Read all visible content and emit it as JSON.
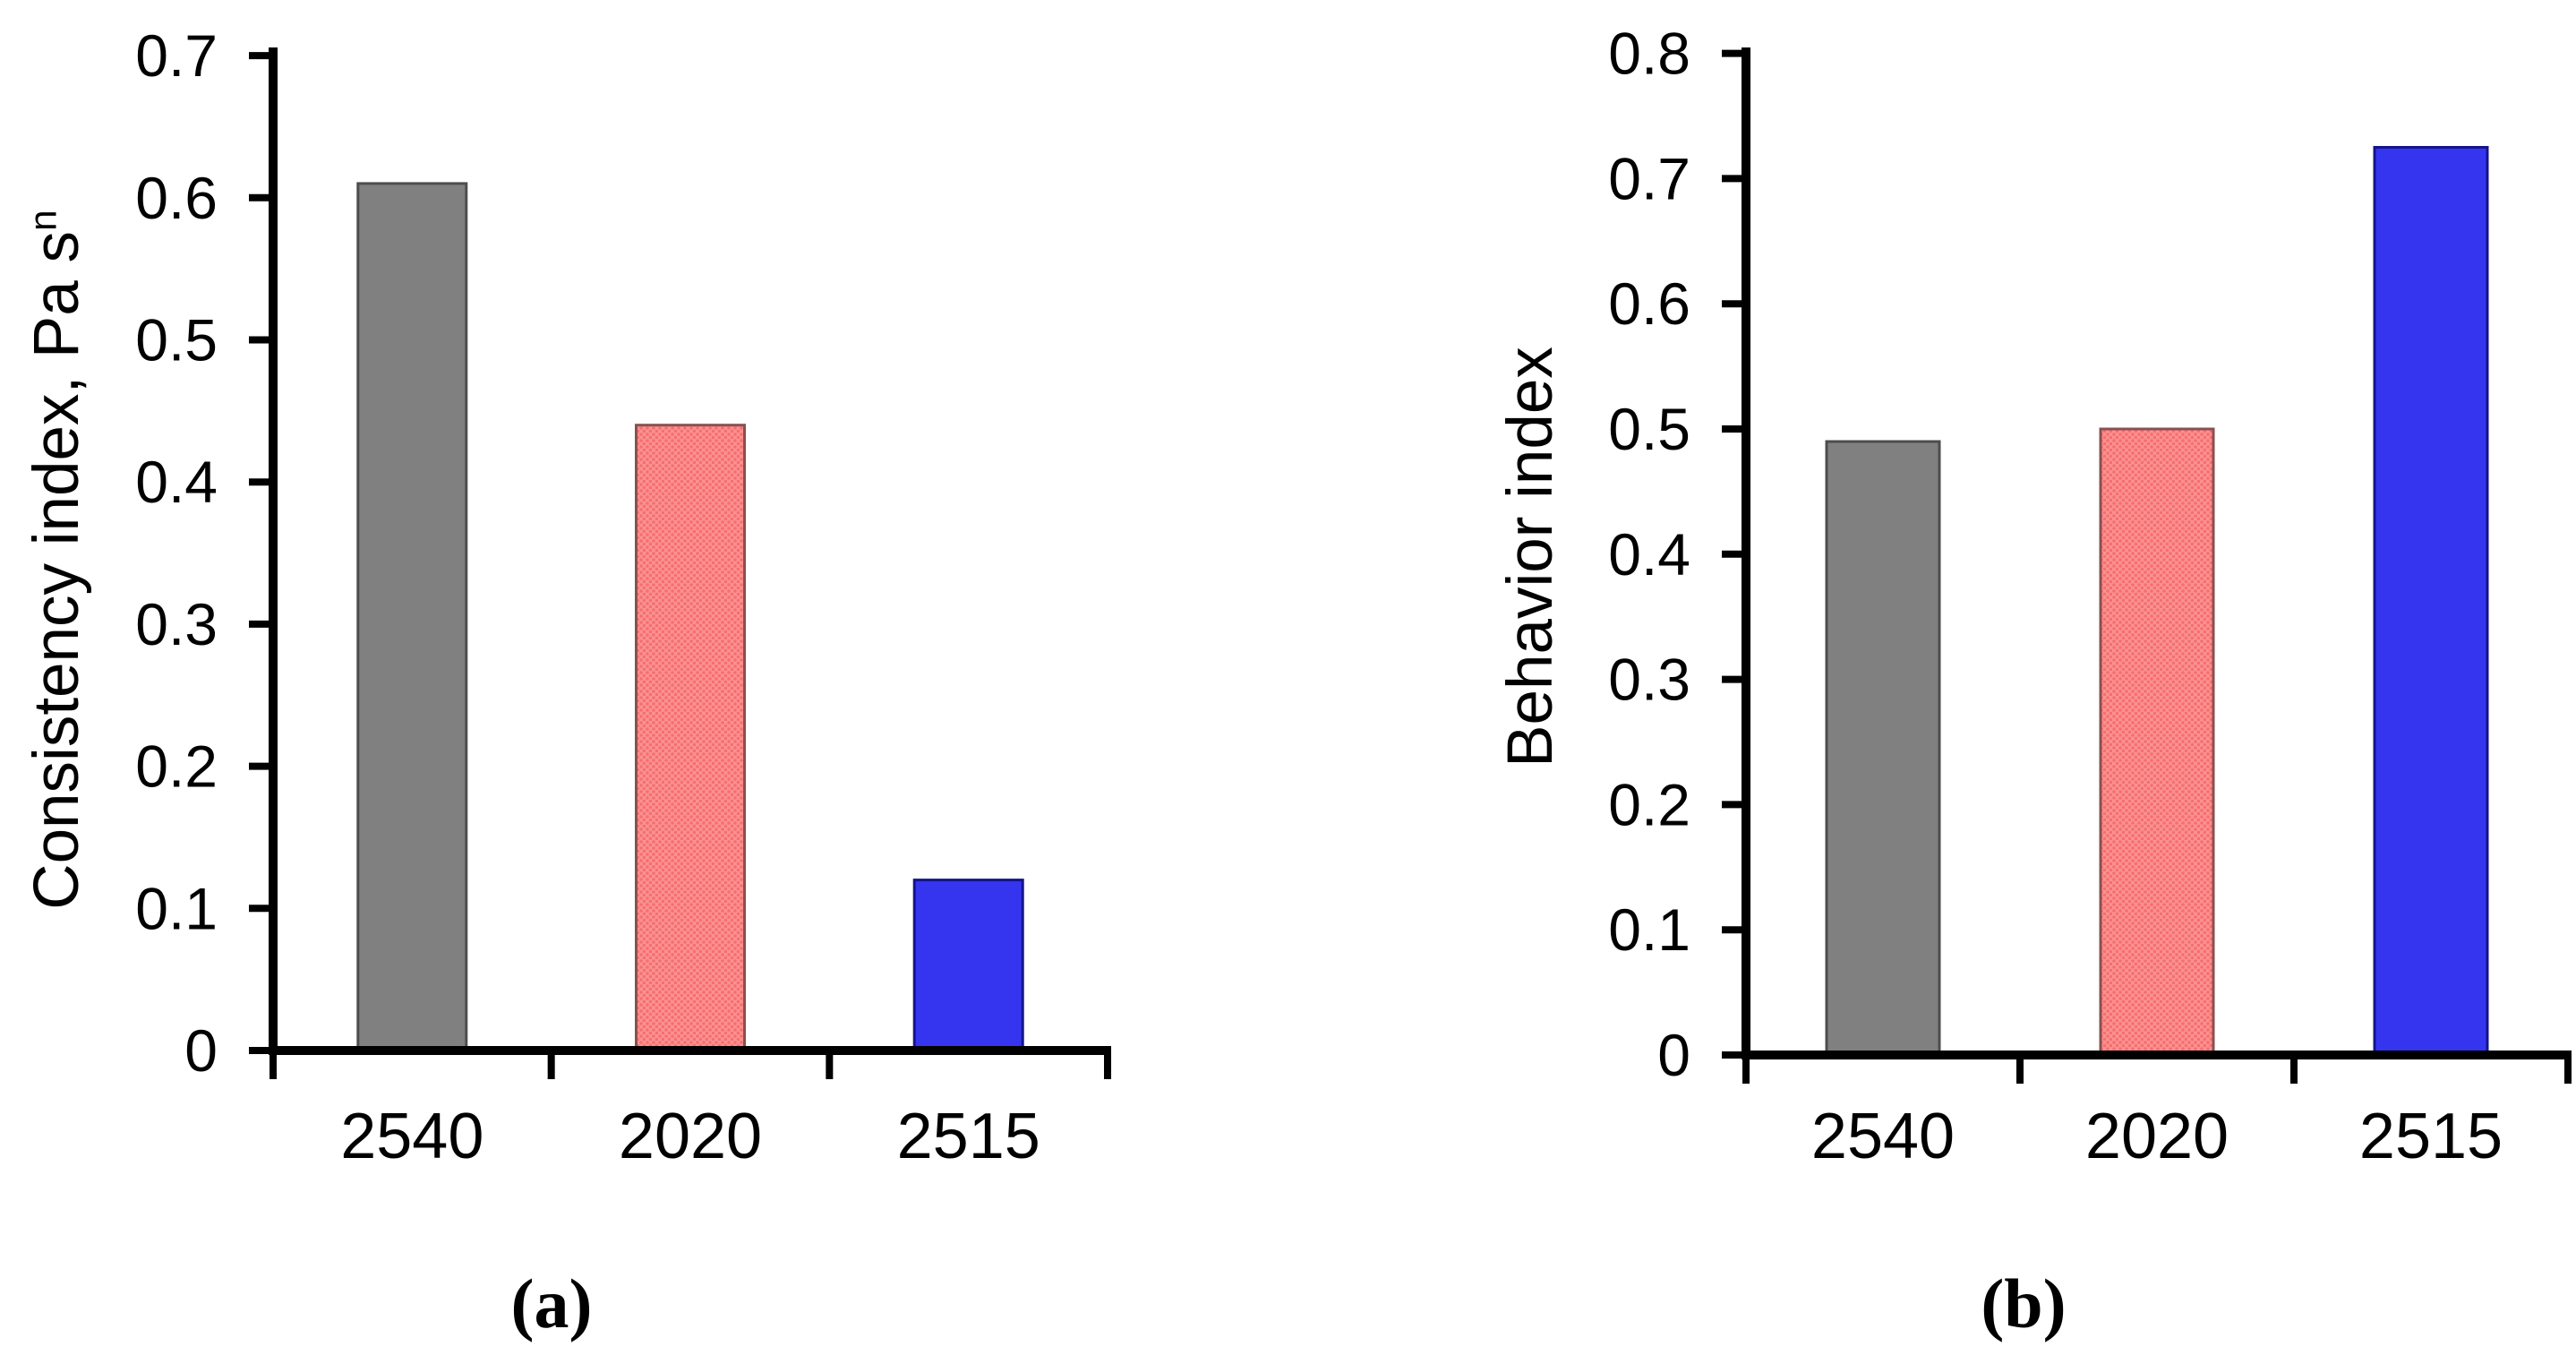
{
  "figure": {
    "background": "#ffffff",
    "text_color": "#000000",
    "axis_color": "#000000"
  },
  "chart_data": [
    {
      "type": "bar",
      "panel_label": "(a)",
      "ylabel": "Consistency index, Pa s",
      "ylabel_superscript": "n",
      "xlabel": "",
      "categories": [
        "2540",
        "2020",
        "2515"
      ],
      "values": [
        0.61,
        0.44,
        0.12
      ],
      "ylim": [
        0,
        0.7
      ],
      "ytick_step": 0.1,
      "ytick_labels": [
        "0",
        "0.1",
        "0.2",
        "0.3",
        "0.4",
        "0.5",
        "0.6",
        "0.7"
      ],
      "grid": false,
      "legend": "none",
      "bars": [
        {
          "category": "2540",
          "value": 0.61,
          "fill": "#808080",
          "edge": "#4D4D4D",
          "pattern": "solid"
        },
        {
          "category": "2020",
          "value": 0.44,
          "fill": "#FB9191",
          "edge": "#8A5050",
          "pattern": "dots",
          "pattern_dot_color": "#F66E6E"
        },
        {
          "category": "2515",
          "value": 0.12,
          "fill": "#3535EF",
          "edge": "#14148C",
          "pattern": "solid"
        }
      ]
    },
    {
      "type": "bar",
      "panel_label": "(b)",
      "ylabel": "Behavior index",
      "ylabel_superscript": "",
      "xlabel": "",
      "categories": [
        "2540",
        "2020",
        "2515"
      ],
      "values": [
        0.49,
        0.5,
        0.725
      ],
      "ylim": [
        0,
        0.8
      ],
      "ytick_step": 0.1,
      "ytick_labels": [
        "0",
        "0.1",
        "0.2",
        "0.3",
        "0.4",
        "0.5",
        "0.6",
        "0.7",
        "0.8"
      ],
      "grid": false,
      "legend": "none",
      "bars": [
        {
          "category": "2540",
          "value": 0.49,
          "fill": "#808080",
          "edge": "#4D4D4D",
          "pattern": "solid"
        },
        {
          "category": "2020",
          "value": 0.5,
          "fill": "#FB9191",
          "edge": "#8A5050",
          "pattern": "dots",
          "pattern_dot_color": "#F66E6E"
        },
        {
          "category": "2515",
          "value": 0.725,
          "fill": "#3535EF",
          "edge": "#14148C",
          "pattern": "solid"
        }
      ]
    }
  ]
}
